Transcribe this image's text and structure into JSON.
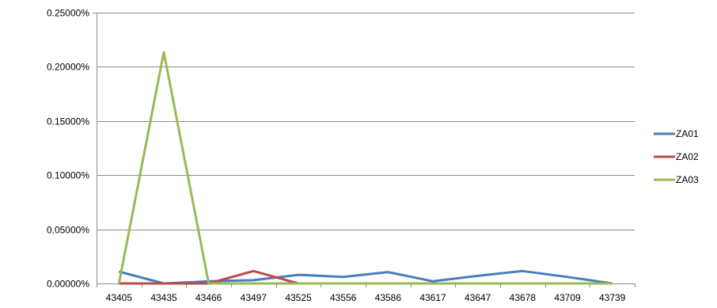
{
  "chart_data": {
    "type": "line",
    "title": "",
    "xlabel": "",
    "ylabel": "",
    "categories": [
      "43405",
      "43435",
      "43466",
      "43497",
      "43525",
      "43556",
      "43586",
      "43617",
      "43647",
      "43678",
      "43709",
      "43739"
    ],
    "y_ticks": [
      "0.00000%",
      "0.05000%",
      "0.10000%",
      "0.15000%",
      "0.20000%",
      "0.25000%"
    ],
    "ylim": [
      0,
      0.25
    ],
    "y_unit": "percent",
    "grid": "horizontal",
    "legend_position": "right",
    "series": [
      {
        "name": "ZA01",
        "color": "#4a7ebb",
        "values": [
          0.011,
          0.0,
          0.002,
          0.003,
          0.008,
          0.006,
          0.0105,
          0.002,
          0.007,
          0.0115,
          0.006,
          0.0
        ]
      },
      {
        "name": "ZA02",
        "color": "#be4b48",
        "values": [
          0.0,
          0.0,
          0.0,
          0.0115,
          0.0,
          0.0,
          0.0,
          0.0,
          0.0,
          0.0,
          0.0,
          0.0
        ]
      },
      {
        "name": "ZA03",
        "color": "#98b954",
        "values": [
          0.0,
          0.2135,
          0.0,
          0.0,
          0.0,
          0.0,
          0.0,
          0.0,
          0.0,
          0.0,
          0.0,
          0.0
        ]
      }
    ]
  }
}
